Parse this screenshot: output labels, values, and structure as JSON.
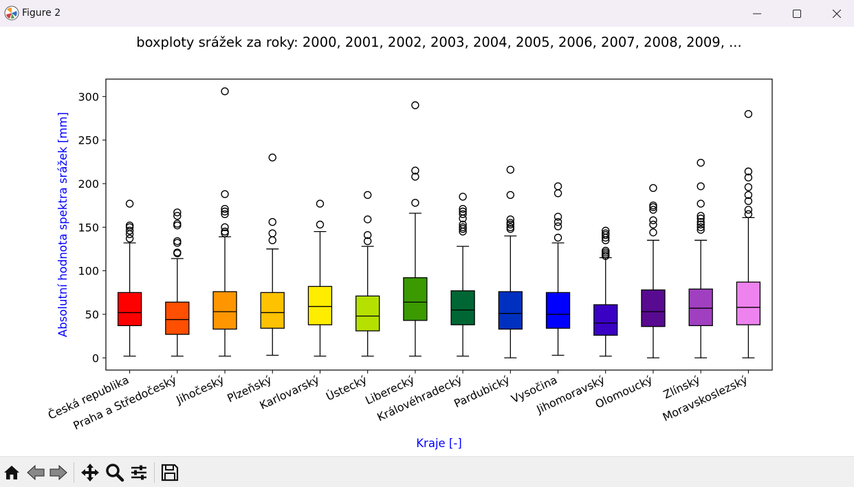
{
  "window": {
    "title": "Figure 2"
  },
  "toolbar": {
    "tools": [
      "home-icon",
      "back-arrow-icon",
      "forward-arrow-icon",
      "pan-move-icon",
      "zoom-magnifier-icon",
      "configure-subplots-icon",
      "save-disk-icon"
    ]
  },
  "chart_data": {
    "type": "box",
    "title": "boxploty srážek za roky: 2000, 2001, 2002, 2003, 2004, 2005, 2006, 2007, 2008, 2009, ...",
    "xlabel": "Kraje [-]",
    "ylabel": "Absolutní hodnota spektra srážek [mm]",
    "ylim": [
      -14,
      320
    ],
    "yticks": [
      0,
      50,
      100,
      150,
      200,
      250,
      300
    ],
    "label_color": "#0000ff",
    "series": [
      {
        "category": "Česká republika",
        "color": "#ff0000",
        "q1": 37,
        "median": 52,
        "q3": 75,
        "whisker_low": 2,
        "whisker_high": 132,
        "outliers": [
          137,
          142,
          146,
          150,
          152,
          177
        ]
      },
      {
        "category": "Praha a Středočeský",
        "color": "#ff4f00",
        "q1": 27,
        "median": 44,
        "q3": 64,
        "whisker_low": 2,
        "whisker_high": 114,
        "outliers": [
          120,
          121,
          132,
          134,
          152,
          154,
          163,
          167
        ]
      },
      {
        "category": "Jihočeský",
        "color": "#ff9600",
        "q1": 33,
        "median": 53,
        "q3": 76,
        "whisker_low": 2,
        "whisker_high": 139,
        "outliers": [
          143,
          145,
          150,
          165,
          168,
          171,
          188,
          306
        ]
      },
      {
        "category": "Plzeňský",
        "color": "#ffc200",
        "q1": 34,
        "median": 52,
        "q3": 75,
        "whisker_low": 3,
        "whisker_high": 125,
        "outliers": [
          135,
          143,
          156,
          230
        ]
      },
      {
        "category": "Karlovarský",
        "color": "#ffed00",
        "q1": 38,
        "median": 59,
        "q3": 82,
        "whisker_low": 2,
        "whisker_high": 145,
        "outliers": [
          153,
          177
        ]
      },
      {
        "category": "Ústecký",
        "color": "#b5e000",
        "q1": 31,
        "median": 48,
        "q3": 71,
        "whisker_low": 2,
        "whisker_high": 128,
        "outliers": [
          134,
          141,
          159,
          187
        ]
      },
      {
        "category": "Liberecký",
        "color": "#3b9a00",
        "q1": 43,
        "median": 64,
        "q3": 92,
        "whisker_low": 2,
        "whisker_high": 166,
        "outliers": [
          178,
          208,
          215,
          290
        ]
      },
      {
        "category": "Královéhradecký",
        "color": "#006633",
        "q1": 38,
        "median": 55,
        "q3": 77,
        "whisker_low": 2,
        "whisker_high": 128,
        "outliers": [
          145,
          148,
          150,
          153,
          160,
          165,
          168,
          171,
          185
        ]
      },
      {
        "category": "Pardubický",
        "color": "#0030c0",
        "q1": 33,
        "median": 51,
        "q3": 76,
        "whisker_low": 0,
        "whisker_high": 140,
        "outliers": [
          148,
          150,
          153,
          155,
          159,
          187,
          216
        ]
      },
      {
        "category": "Vysočina",
        "color": "#0000ff",
        "q1": 34,
        "median": 50,
        "q3": 75,
        "whisker_low": 3,
        "whisker_high": 132,
        "outliers": [
          138,
          151,
          156,
          162,
          189,
          197
        ]
      },
      {
        "category": "Jihomoravský",
        "color": "#3a00c4",
        "q1": 26,
        "median": 40,
        "q3": 61,
        "whisker_low": 2,
        "whisker_high": 115,
        "outliers": [
          117,
          119,
          121,
          123,
          135,
          138,
          141,
          143,
          146
        ]
      },
      {
        "category": "Olomoucký",
        "color": "#580a90",
        "q1": 36,
        "median": 53,
        "q3": 78,
        "whisker_low": 0,
        "whisker_high": 135,
        "outliers": [
          144,
          153,
          158,
          170,
          173,
          175,
          195
        ]
      },
      {
        "category": "Zlínský",
        "color": "#a040c0",
        "q1": 37,
        "median": 57,
        "q3": 79,
        "whisker_low": 0,
        "whisker_high": 135,
        "outliers": [
          147,
          150,
          153,
          156,
          160,
          163,
          177,
          197,
          224
        ]
      },
      {
        "category": "Moravskoslezský",
        "color": "#ee82ee",
        "q1": 38,
        "median": 58,
        "q3": 87,
        "whisker_low": 0,
        "whisker_high": 161,
        "outliers": [
          165,
          170,
          180,
          187,
          196,
          207,
          214,
          280
        ]
      }
    ]
  }
}
